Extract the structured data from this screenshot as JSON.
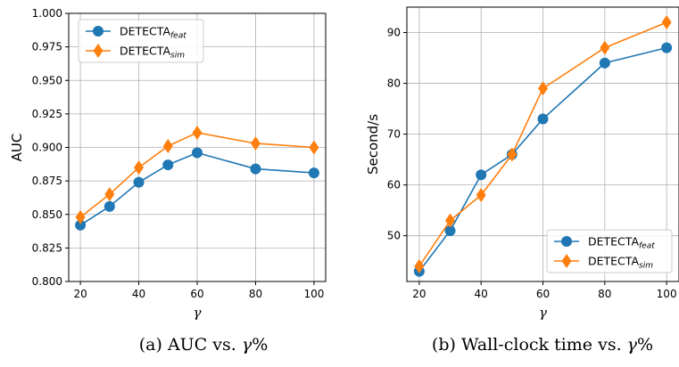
{
  "chart_data": [
    {
      "type": "line",
      "x": [
        20,
        30,
        40,
        50,
        60,
        80,
        100
      ],
      "xlabel": "γ",
      "ylabel": "AUC",
      "ylim": [
        0.8,
        1.0
      ],
      "yticks": [
        "0.800",
        "0.825",
        "0.850",
        "0.875",
        "0.900",
        "0.925",
        "0.950",
        "0.975",
        "1.000"
      ],
      "xticks": [
        "20",
        "40",
        "60",
        "80",
        "100"
      ],
      "grid": true,
      "legend_position": "upper-left",
      "caption_prefix": "(a)  AUC vs. ",
      "caption_var": "γ",
      "caption_suffix": "%",
      "series": [
        {
          "name_main": "DETECTA",
          "name_sub": "feat",
          "color": "#1f77b4",
          "marker": "circle",
          "values": [
            0.842,
            0.856,
            0.874,
            0.887,
            0.896,
            0.884,
            0.881
          ]
        },
        {
          "name_main": "DETECTA",
          "name_sub": "sim",
          "color": "#ff7f0e",
          "marker": "diamond",
          "values": [
            0.848,
            0.865,
            0.885,
            0.901,
            0.911,
            0.903,
            0.9
          ]
        }
      ]
    },
    {
      "type": "line",
      "x": [
        20,
        30,
        40,
        50,
        60,
        80,
        100
      ],
      "xlabel": "γ",
      "ylabel": "Second/s",
      "ylim": [
        41,
        95
      ],
      "yticks": [
        "50",
        "60",
        "70",
        "80",
        "90"
      ],
      "xticks": [
        "20",
        "40",
        "60",
        "80",
        "100"
      ],
      "grid": true,
      "legend_position": "lower-right",
      "caption_prefix": "(b)  Wall-clock time vs. ",
      "caption_var": "γ",
      "caption_suffix": "%",
      "series": [
        {
          "name_main": "DETECTA",
          "name_sub": "feat",
          "color": "#1f77b4",
          "marker": "circle",
          "values": [
            43,
            51,
            62,
            66,
            73,
            84,
            87
          ]
        },
        {
          "name_main": "DETECTA",
          "name_sub": "sim",
          "color": "#ff7f0e",
          "marker": "diamond",
          "values": [
            44,
            53,
            58,
            66,
            79,
            87,
            92
          ]
        }
      ]
    }
  ]
}
